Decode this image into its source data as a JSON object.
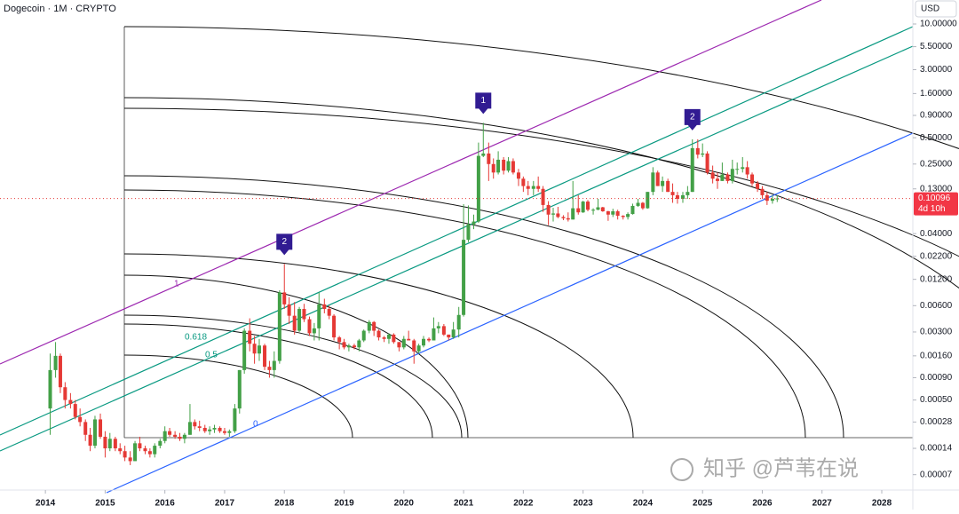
{
  "chart_data": {
    "type": "candlestick",
    "title": "Dogecoin · 1M · CRYPTO",
    "currency": "USD",
    "log_scale": true,
    "up_color": "#43a047",
    "down_color": "#e53935",
    "xlim": [
      2013.24,
      2028.52
    ],
    "xticks": [
      2014,
      2015,
      2016,
      2017,
      2018,
      2019,
      2020,
      2021,
      2022,
      2023,
      2024,
      2025,
      2026,
      2027,
      2028
    ],
    "ylim": [
      4.67e-05,
      18.8
    ],
    "yticks": [
      {
        "value": 10,
        "label": "10.00000"
      },
      {
        "value": 5.5,
        "label": "5.50000"
      },
      {
        "value": 3,
        "label": "3.00000"
      },
      {
        "value": 1.6,
        "label": "1.60000"
      },
      {
        "value": 0.9,
        "label": "0.90000"
      },
      {
        "value": 0.5,
        "label": "0.50000"
      },
      {
        "value": 0.25,
        "label": "0.25000"
      },
      {
        "value": 0.13,
        "label": "0.13000"
      },
      {
        "value": 0.04,
        "label": "0.04000"
      },
      {
        "value": 0.022,
        "label": "0.02200"
      },
      {
        "value": 0.012,
        "label": "0.01200"
      },
      {
        "value": 0.006,
        "label": "0.00600"
      },
      {
        "value": 0.003,
        "label": "0.00300"
      },
      {
        "value": 0.0016,
        "label": "0.00160"
      },
      {
        "value": 0.0009,
        "label": "0.00090"
      },
      {
        "value": 0.0005,
        "label": "0.00050"
      },
      {
        "value": 0.00028,
        "label": "0.00028"
      },
      {
        "value": 0.00014,
        "label": "0.00014"
      },
      {
        "value": 7e-05,
        "label": "0.00007"
      }
    ],
    "last_price": {
      "value": 0.10096,
      "label": "0.10096",
      "countdown": "4d 10h"
    },
    "fib_levels": [
      "1",
      "0.618",
      "0.5",
      "0"
    ],
    "markers": [
      {
        "label": "2",
        "x": 2018.0
      },
      {
        "label": "1",
        "x": 2021.33
      },
      {
        "label": "2",
        "x": 2024.83
      }
    ],
    "watermark": "知乎 @芦苇在说",
    "x": [
      2014.08,
      2014.17,
      2014.25,
      2014.33,
      2014.42,
      2014.5,
      2014.58,
      2014.67,
      2014.75,
      2014.83,
      2014.92,
      2015.0,
      2015.08,
      2015.17,
      2015.25,
      2015.33,
      2015.42,
      2015.5,
      2015.58,
      2015.67,
      2015.75,
      2015.83,
      2015.92,
      2016.0,
      2016.08,
      2016.17,
      2016.25,
      2016.33,
      2016.42,
      2016.5,
      2016.58,
      2016.67,
      2016.75,
      2016.83,
      2016.92,
      2017.0,
      2017.08,
      2017.17,
      2017.25,
      2017.33,
      2017.42,
      2017.5,
      2017.58,
      2017.67,
      2017.75,
      2017.83,
      2017.92,
      2018.0,
      2018.08,
      2018.17,
      2018.25,
      2018.33,
      2018.42,
      2018.5,
      2018.58,
      2018.67,
      2018.75,
      2018.83,
      2018.92,
      2019.0,
      2019.08,
      2019.17,
      2019.25,
      2019.33,
      2019.42,
      2019.5,
      2019.58,
      2019.67,
      2019.75,
      2019.83,
      2019.92,
      2020.0,
      2020.08,
      2020.17,
      2020.25,
      2020.33,
      2020.42,
      2020.5,
      2020.58,
      2020.67,
      2020.75,
      2020.83,
      2020.92,
      2021.0,
      2021.08,
      2021.17,
      2021.25,
      2021.33,
      2021.42,
      2021.5,
      2021.58,
      2021.67,
      2021.75,
      2021.83,
      2021.92,
      2022.0,
      2022.08,
      2022.17,
      2022.25,
      2022.33,
      2022.42,
      2022.5,
      2022.58,
      2022.67,
      2022.75,
      2022.83,
      2022.92,
      2023.0,
      2023.08,
      2023.17,
      2023.25,
      2023.33,
      2023.42,
      2023.5,
      2023.58,
      2023.67,
      2023.75,
      2023.83,
      2023.92,
      2024.0,
      2024.08,
      2024.17,
      2024.25,
      2024.33,
      2024.42,
      2024.5,
      2024.58,
      2024.67,
      2024.75,
      2024.83,
      2024.92,
      2025.0,
      2025.08,
      2025.17,
      2025.25,
      2025.33,
      2025.42,
      2025.5,
      2025.58,
      2025.67,
      2025.75,
      2025.83,
      2025.92,
      2026.0,
      2026.08,
      2026.17,
      2026.25
    ],
    "ohlc": [
      [
        0.0004,
        0.0017,
        0.0002,
        0.0011
      ],
      [
        0.0011,
        0.0023,
        0.0009,
        0.0016
      ],
      [
        0.0016,
        0.0017,
        0.0006,
        0.0007
      ],
      [
        0.0007,
        0.0008,
        0.0004,
        0.0005
      ],
      [
        0.0005,
        0.0006,
        0.0004,
        0.00045
      ],
      [
        0.00045,
        0.0005,
        0.0003,
        0.00032
      ],
      [
        0.00032,
        0.0004,
        0.00025,
        0.00028
      ],
      [
        0.00028,
        0.0003,
        0.00017,
        0.0002
      ],
      [
        0.0002,
        0.00024,
        0.00013,
        0.00015
      ],
      [
        0.00015,
        0.00033,
        0.00014,
        0.0003
      ],
      [
        0.0003,
        0.00035,
        0.00018,
        0.00019
      ],
      [
        0.00019,
        0.00022,
        0.00011,
        0.00014
      ],
      [
        0.00014,
        0.00021,
        0.00013,
        0.00018
      ],
      [
        0.00018,
        0.00019,
        0.00013,
        0.00014
      ],
      [
        0.00014,
        0.00016,
        0.00012,
        0.00013
      ],
      [
        0.00013,
        0.00015,
        0.0001,
        0.00011
      ],
      [
        0.00011,
        0.00013,
        9e-05,
        0.0001
      ],
      [
        0.0001,
        0.00017,
        0.0001,
        0.00016
      ],
      [
        0.00016,
        0.00019,
        0.00013,
        0.00014
      ],
      [
        0.00014,
        0.00015,
        0.00012,
        0.00013
      ],
      [
        0.00013,
        0.00014,
        0.00011,
        0.00012
      ],
      [
        0.00012,
        0.00016,
        0.00011,
        0.00015
      ],
      [
        0.00015,
        0.00018,
        0.00014,
        0.00017
      ],
      [
        0.00017,
        0.00025,
        0.00016,
        0.00022
      ],
      [
        0.00022,
        0.00024,
        0.00019,
        0.0002
      ],
      [
        0.0002,
        0.00022,
        0.00018,
        0.00019
      ],
      [
        0.00019,
        0.00021,
        0.00017,
        0.00018
      ],
      [
        0.00018,
        0.00021,
        0.00016,
        0.0002
      ],
      [
        0.0002,
        0.00045,
        0.0002,
        0.00028
      ],
      [
        0.00028,
        0.0003,
        0.00023,
        0.00025
      ],
      [
        0.00025,
        0.00029,
        0.00022,
        0.00024
      ],
      [
        0.00024,
        0.00026,
        0.00021,
        0.00022
      ],
      [
        0.00022,
        0.00025,
        0.0002,
        0.00023
      ],
      [
        0.00023,
        0.00026,
        0.00021,
        0.00024
      ],
      [
        0.00024,
        0.00025,
        0.00021,
        0.00022
      ],
      [
        0.00022,
        0.00024,
        0.0002,
        0.00021
      ],
      [
        0.00021,
        0.00023,
        0.00019,
        0.00022
      ],
      [
        0.00022,
        0.00045,
        0.00021,
        0.0004
      ],
      [
        0.0004,
        0.0011,
        0.00035,
        0.0011
      ],
      [
        0.0011,
        0.0033,
        0.001,
        0.0031
      ],
      [
        0.0031,
        0.0043,
        0.0018,
        0.0022
      ],
      [
        0.0022,
        0.0027,
        0.0013,
        0.0017
      ],
      [
        0.0017,
        0.0025,
        0.0014,
        0.0021
      ],
      [
        0.0021,
        0.0022,
        0.0011,
        0.0012
      ],
      [
        0.0012,
        0.0014,
        0.0009,
        0.0011
      ],
      [
        0.0011,
        0.0018,
        0.0009,
        0.0014
      ],
      [
        0.0014,
        0.009,
        0.0013,
        0.0085
      ],
      [
        0.0085,
        0.018,
        0.0055,
        0.0062
      ],
      [
        0.0062,
        0.0075,
        0.0037,
        0.0046
      ],
      [
        0.0046,
        0.0066,
        0.0028,
        0.0031
      ],
      [
        0.0031,
        0.0058,
        0.003,
        0.0055
      ],
      [
        0.0055,
        0.0063,
        0.0039,
        0.0042
      ],
      [
        0.0042,
        0.0045,
        0.0027,
        0.0029
      ],
      [
        0.0029,
        0.0038,
        0.0024,
        0.0033
      ],
      [
        0.0033,
        0.0085,
        0.0024,
        0.0062
      ],
      [
        0.0062,
        0.0072,
        0.0049,
        0.0055
      ],
      [
        0.0055,
        0.006,
        0.0042,
        0.0046
      ],
      [
        0.0046,
        0.0048,
        0.0024,
        0.0026
      ],
      [
        0.0026,
        0.0027,
        0.0019,
        0.0023
      ],
      [
        0.0023,
        0.0025,
        0.0019,
        0.002
      ],
      [
        0.002,
        0.0022,
        0.0018,
        0.0021
      ],
      [
        0.0021,
        0.0022,
        0.0019,
        0.002
      ],
      [
        0.002,
        0.0025,
        0.0018,
        0.0024
      ],
      [
        0.0024,
        0.0032,
        0.0023,
        0.0031
      ],
      [
        0.0031,
        0.0041,
        0.0029,
        0.0039
      ],
      [
        0.0039,
        0.004,
        0.0027,
        0.0031
      ],
      [
        0.0031,
        0.0032,
        0.0024,
        0.0026
      ],
      [
        0.0026,
        0.0027,
        0.0023,
        0.0025
      ],
      [
        0.0025,
        0.0029,
        0.0022,
        0.0028
      ],
      [
        0.0028,
        0.0029,
        0.0022,
        0.0023
      ],
      [
        0.0023,
        0.0023,
        0.0018,
        0.002
      ],
      [
        0.002,
        0.0027,
        0.0019,
        0.0025
      ],
      [
        0.0025,
        0.0031,
        0.0024,
        0.0024
      ],
      [
        0.0024,
        0.0025,
        0.0013,
        0.0018
      ],
      [
        0.0018,
        0.0022,
        0.0017,
        0.0021
      ],
      [
        0.0021,
        0.0027,
        0.002,
        0.0025
      ],
      [
        0.0025,
        0.0026,
        0.0023,
        0.0024
      ],
      [
        0.0024,
        0.0044,
        0.0024,
        0.0033
      ],
      [
        0.0033,
        0.0039,
        0.0029,
        0.0035
      ],
      [
        0.0035,
        0.0037,
        0.0027,
        0.0028
      ],
      [
        0.0028,
        0.0028,
        0.0024,
        0.0026
      ],
      [
        0.0026,
        0.0039,
        0.0025,
        0.0032
      ],
      [
        0.0032,
        0.0058,
        0.0026,
        0.0047
      ],
      [
        0.0047,
        0.087,
        0.0045,
        0.034
      ],
      [
        0.034,
        0.084,
        0.032,
        0.051
      ],
      [
        0.051,
        0.066,
        0.045,
        0.055
      ],
      [
        0.055,
        0.44,
        0.053,
        0.31
      ],
      [
        0.31,
        0.74,
        0.3,
        0.33
      ],
      [
        0.33,
        0.44,
        0.16,
        0.25
      ],
      [
        0.25,
        0.29,
        0.17,
        0.2
      ],
      [
        0.2,
        0.35,
        0.19,
        0.28
      ],
      [
        0.28,
        0.3,
        0.19,
        0.21
      ],
      [
        0.21,
        0.3,
        0.2,
        0.27
      ],
      [
        0.27,
        0.29,
        0.19,
        0.2
      ],
      [
        0.2,
        0.22,
        0.14,
        0.17
      ],
      [
        0.17,
        0.18,
        0.12,
        0.14
      ],
      [
        0.14,
        0.16,
        0.11,
        0.13
      ],
      [
        0.13,
        0.16,
        0.11,
        0.14
      ],
      [
        0.14,
        0.18,
        0.12,
        0.13
      ],
      [
        0.13,
        0.14,
        0.071,
        0.085
      ],
      [
        0.085,
        0.094,
        0.05,
        0.066
      ],
      [
        0.066,
        0.079,
        0.055,
        0.068
      ],
      [
        0.068,
        0.081,
        0.06,
        0.062
      ],
      [
        0.062,
        0.065,
        0.057,
        0.06
      ],
      [
        0.06,
        0.07,
        0.055,
        0.058
      ],
      [
        0.058,
        0.16,
        0.058,
        0.078
      ],
      [
        0.078,
        0.11,
        0.066,
        0.07
      ],
      [
        0.07,
        0.095,
        0.069,
        0.093
      ],
      [
        0.093,
        0.097,
        0.072,
        0.075
      ],
      [
        0.075,
        0.078,
        0.066,
        0.075
      ],
      [
        0.075,
        0.1,
        0.074,
        0.08
      ],
      [
        0.08,
        0.081,
        0.071,
        0.072
      ],
      [
        0.072,
        0.073,
        0.056,
        0.066
      ],
      [
        0.066,
        0.077,
        0.062,
        0.072
      ],
      [
        0.072,
        0.075,
        0.058,
        0.064
      ],
      [
        0.064,
        0.065,
        0.058,
        0.062
      ],
      [
        0.062,
        0.07,
        0.058,
        0.067
      ],
      [
        0.067,
        0.088,
        0.066,
        0.083
      ],
      [
        0.083,
        0.1,
        0.081,
        0.09
      ],
      [
        0.09,
        0.092,
        0.075,
        0.078
      ],
      [
        0.078,
        0.12,
        0.077,
        0.12
      ],
      [
        0.12,
        0.23,
        0.11,
        0.2
      ],
      [
        0.2,
        0.21,
        0.14,
        0.14
      ],
      [
        0.14,
        0.18,
        0.12,
        0.16
      ],
      [
        0.16,
        0.17,
        0.12,
        0.12
      ],
      [
        0.12,
        0.15,
        0.09,
        0.11
      ],
      [
        0.11,
        0.12,
        0.088,
        0.1
      ],
      [
        0.1,
        0.12,
        0.09,
        0.11
      ],
      [
        0.11,
        0.14,
        0.1,
        0.12
      ],
      [
        0.12,
        0.48,
        0.12,
        0.38
      ],
      [
        0.38,
        0.48,
        0.29,
        0.32
      ],
      [
        0.32,
        0.43,
        0.3,
        0.33
      ],
      [
        0.33,
        0.35,
        0.19,
        0.2
      ],
      [
        0.2,
        0.24,
        0.15,
        0.17
      ],
      [
        0.17,
        0.2,
        0.13,
        0.16
      ],
      [
        0.16,
        0.26,
        0.16,
        0.19
      ],
      [
        0.19,
        0.2,
        0.15,
        0.16
      ],
      [
        0.16,
        0.28,
        0.15,
        0.22
      ],
      [
        0.22,
        0.26,
        0.19,
        0.22
      ],
      [
        0.22,
        0.3,
        0.2,
        0.23
      ],
      [
        0.23,
        0.27,
        0.17,
        0.19
      ],
      [
        0.19,
        0.2,
        0.14,
        0.15
      ],
      [
        0.15,
        0.16,
        0.12,
        0.13
      ],
      [
        0.13,
        0.14,
        0.1,
        0.11
      ],
      [
        0.11,
        0.12,
        0.085,
        0.095
      ],
      [
        0.095,
        0.11,
        0.088,
        0.1
      ],
      [
        0.1,
        0.11,
        0.092,
        0.10096
      ]
    ]
  }
}
